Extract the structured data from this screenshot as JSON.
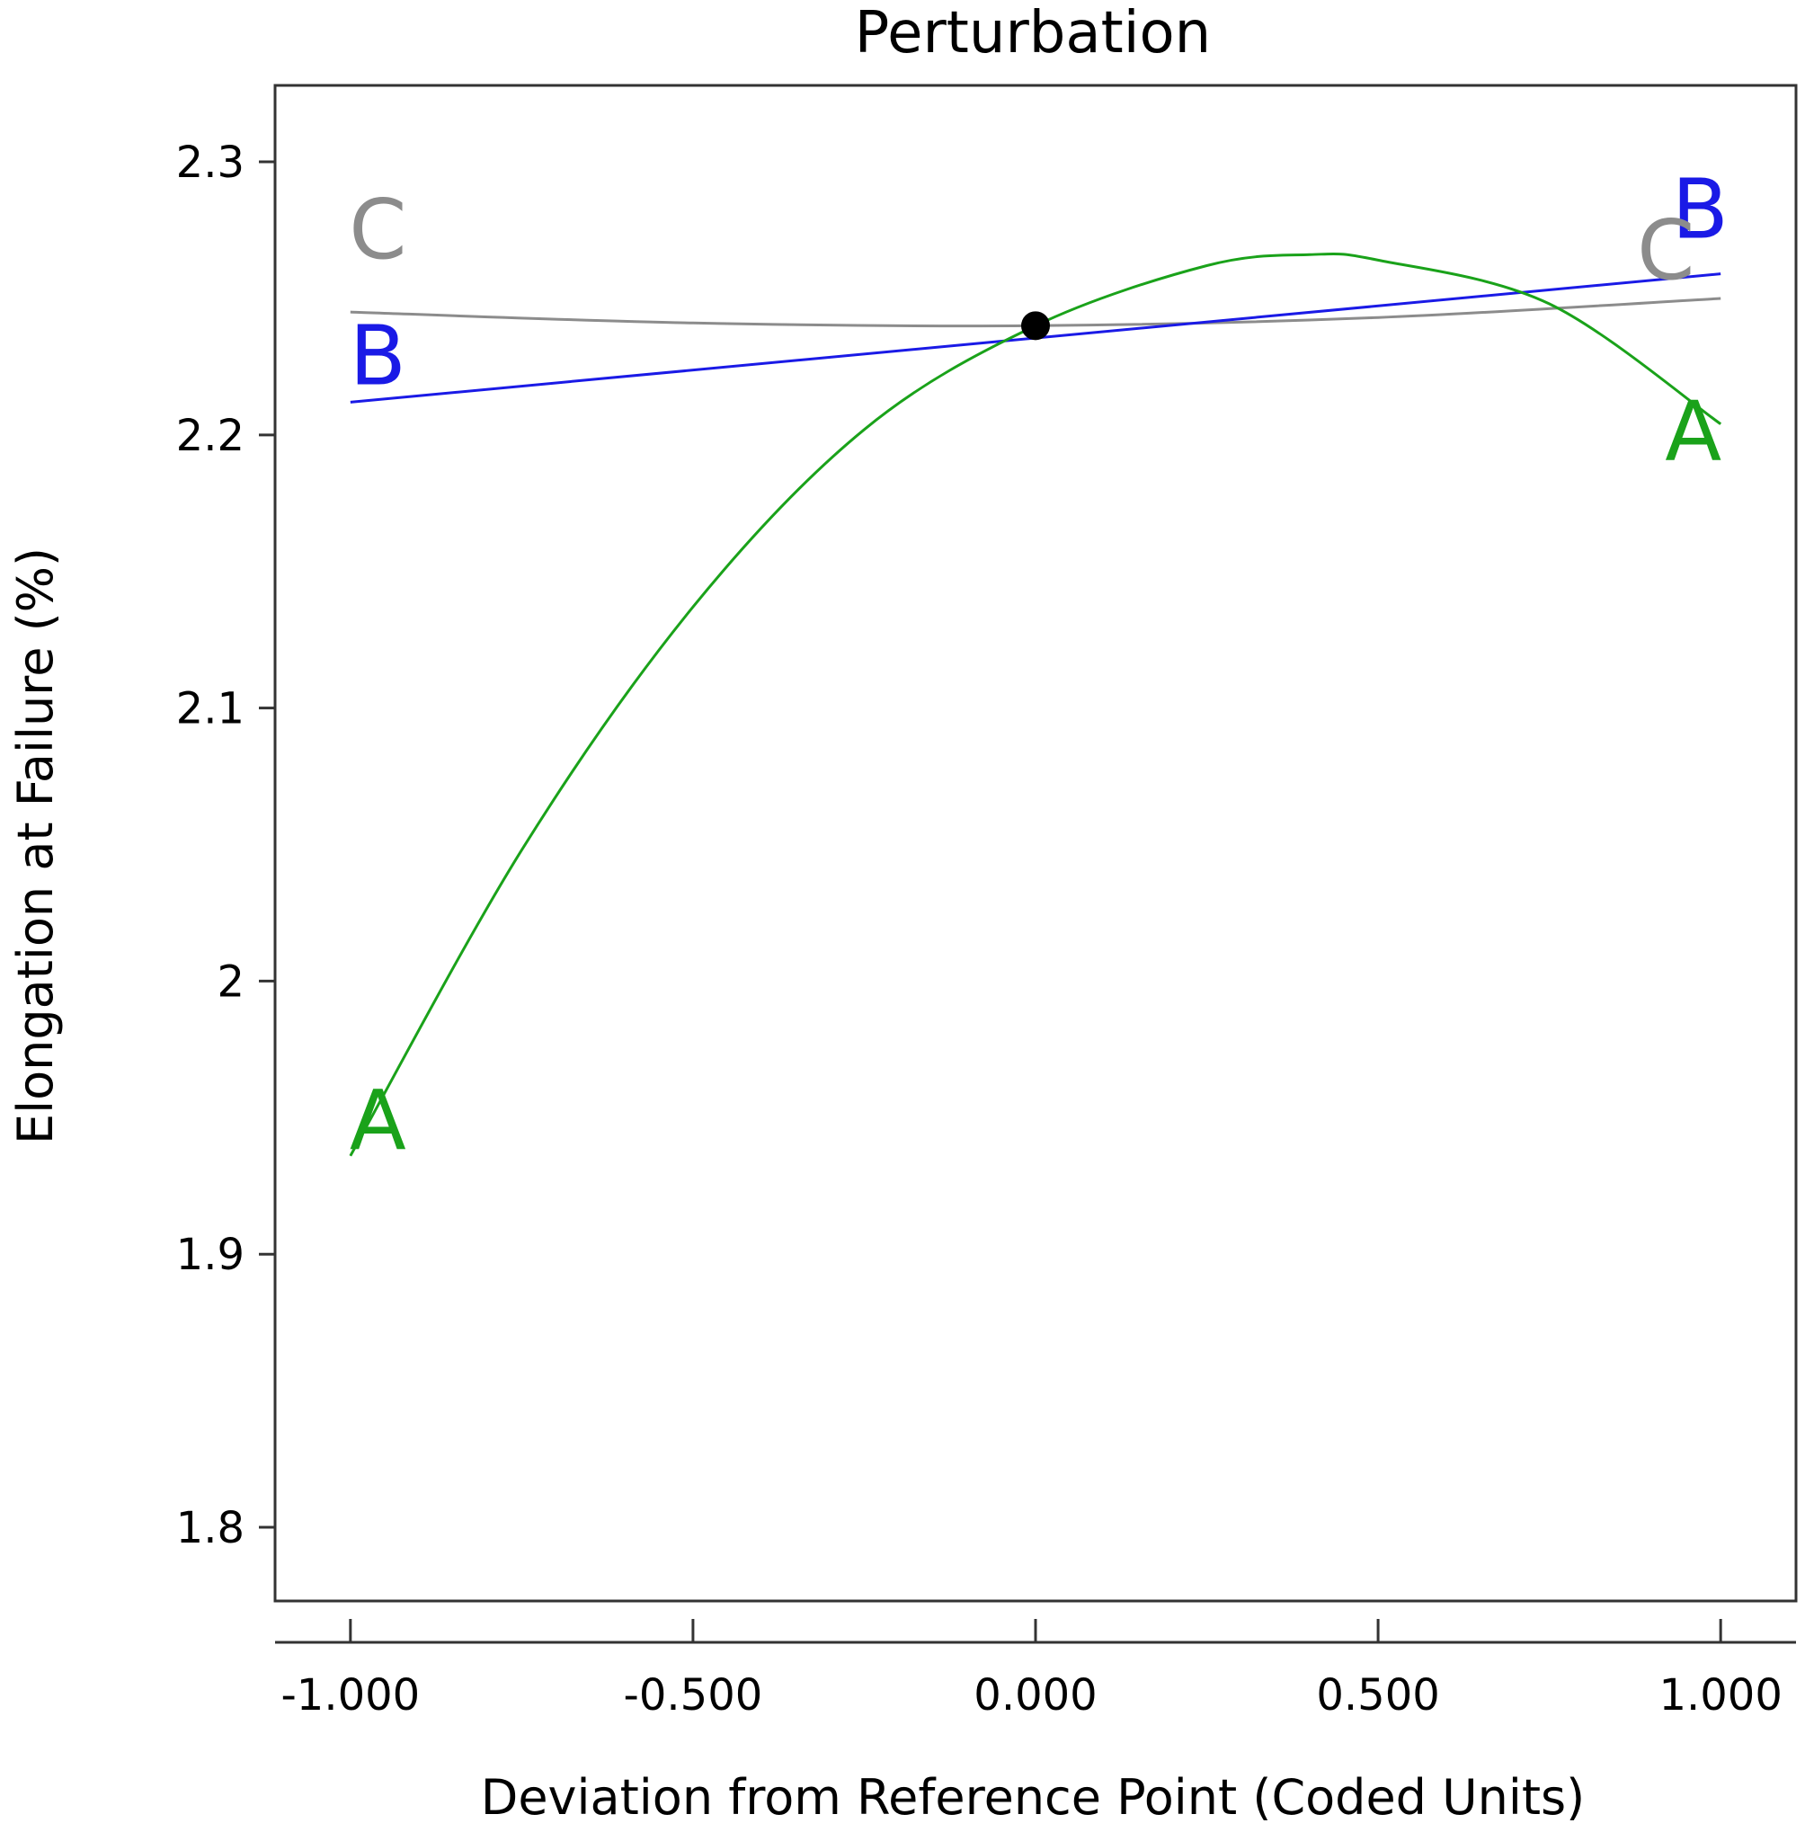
{
  "chart_data": {
    "type": "line",
    "title": "Perturbation",
    "xlabel": "Deviation from Reference Point (Coded Units)",
    "ylabel": "Elongation at Failure (%)",
    "xlim": [
      -1.11,
      1.11
    ],
    "ylim": [
      1.773,
      2.328
    ],
    "x_ticks": [
      -1.0,
      -0.5,
      0.0,
      0.5,
      1.0
    ],
    "x_tick_labels": [
      "-1.000",
      "-0.500",
      "0.000",
      "0.500",
      "1.000"
    ],
    "y_ticks": [
      1.8,
      1.9,
      2.0,
      2.1,
      2.2,
      2.3
    ],
    "y_tick_labels": [
      "1.8",
      "1.9",
      "2",
      "2.1",
      "2.2",
      "2.3"
    ],
    "grid": false,
    "reference_point": {
      "x": 0.0,
      "y": 2.24
    },
    "series": [
      {
        "name": "A",
        "color": "#1aa21a",
        "x": [
          -1.0,
          -0.75,
          -0.5,
          -0.25,
          0.0,
          0.25,
          0.4,
          0.5,
          0.75,
          1.0
        ],
        "y": [
          1.936,
          2.048,
          2.137,
          2.202,
          2.24,
          2.262,
          2.266,
          2.264,
          2.248,
          2.204
        ]
      },
      {
        "name": "B",
        "color": "#1a1ae6",
        "x": [
          -1.0,
          1.0
        ],
        "y": [
          2.212,
          2.259
        ]
      },
      {
        "name": "C",
        "color": "#8c8c8c",
        "x": [
          -1.0,
          -0.5,
          0.0,
          0.5,
          1.0
        ],
        "y": [
          2.245,
          2.241,
          2.24,
          2.243,
          2.25
        ]
      }
    ]
  }
}
